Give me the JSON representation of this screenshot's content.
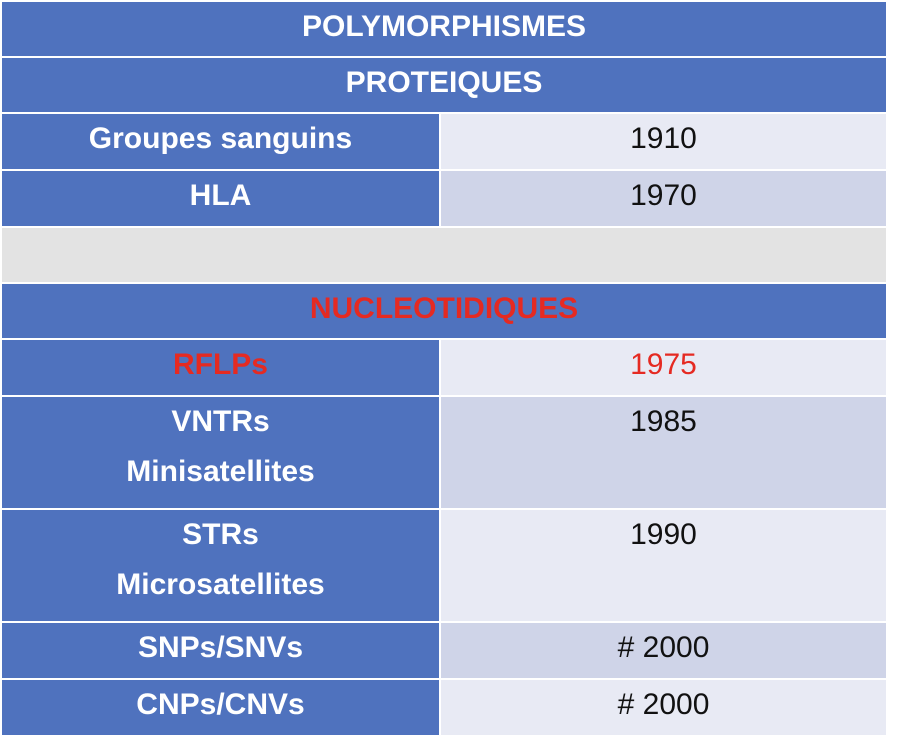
{
  "table": {
    "title": "POLYMORPHISMES",
    "section_protein": "PROTEIQUES",
    "protein_rows": [
      {
        "label": "Groupes sanguins",
        "year": "1910"
      },
      {
        "label": "HLA",
        "year": "1970"
      }
    ],
    "section_nucleotide": "NUCLEOTIDIQUES",
    "nucleotide_rows": [
      {
        "label": "RFLPs",
        "year": "1975"
      },
      {
        "label_line1": "VNTRs",
        "label_line2": "Minisatellites",
        "year": "1985"
      },
      {
        "label_line1": "STRs",
        "label_line2": "Microsatellites",
        "year": "1990"
      },
      {
        "label": "SNPs/SNVs",
        "year": "# 2000"
      },
      {
        "label": "CNPs/CNVs",
        "year": "# 2000"
      }
    ]
  },
  "colors": {
    "header_blue": "#4f72be",
    "row_light": "#e8eaf4",
    "row_dark": "#cfd4e8",
    "gap_gray": "#e3e3e3",
    "highlight_red": "#e52a22"
  }
}
